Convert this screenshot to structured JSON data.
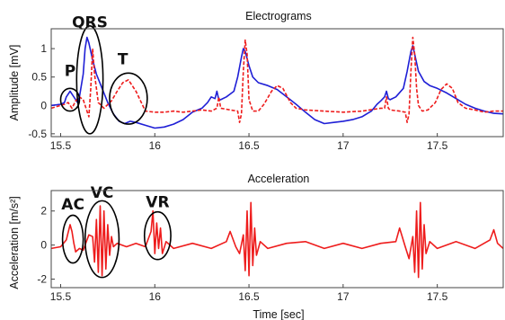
{
  "chart_data": [
    {
      "type": "line",
      "title": "Electrograms",
      "xlabel": "",
      "ylabel": "Amplitude [mV]",
      "xlim": [
        15.45,
        17.85
      ],
      "ylim": [
        -0.55,
        1.35
      ],
      "xticks": [
        15.5,
        16,
        16.5,
        17,
        17.5
      ],
      "xtick_labels": [
        "15.5",
        "16",
        "16.5",
        "17",
        "17.5"
      ],
      "yticks": [
        -0.5,
        0,
        0.5,
        1
      ],
      "ytick_labels": [
        "-0.5",
        "0",
        "0.5",
        "1"
      ],
      "grid": false,
      "legend": "none",
      "colors": [
        "#1f1fd6",
        "#ee1c1c"
      ],
      "series": [
        {
          "line_style": "solid",
          "x": [
            15.45,
            15.48,
            15.5,
            15.52,
            15.53,
            15.55,
            15.57,
            15.59,
            15.6,
            15.62,
            15.63,
            15.64,
            15.65,
            15.67,
            15.69,
            15.72,
            15.75,
            15.78,
            15.81,
            15.84,
            15.87,
            15.9,
            15.95,
            16.0,
            16.05,
            16.1,
            16.15,
            16.2,
            16.25,
            16.28,
            16.3,
            16.32,
            16.33,
            16.34,
            16.35,
            16.38,
            16.42,
            16.44,
            16.46,
            16.47,
            16.48,
            16.5,
            16.52,
            16.55,
            16.6,
            16.65,
            16.7,
            16.75,
            16.8,
            16.85,
            16.9,
            16.95,
            17.0,
            17.05,
            17.1,
            17.15,
            17.18,
            17.2,
            17.22,
            17.23,
            17.24,
            17.25,
            17.28,
            17.32,
            17.34,
            17.36,
            17.37,
            17.38,
            17.4,
            17.43,
            17.46,
            17.5,
            17.55,
            17.6,
            17.65,
            17.7,
            17.75,
            17.8,
            17.85
          ],
          "y": [
            0,
            0.01,
            0.02,
            0.05,
            0.15,
            0.25,
            0.15,
            0.05,
            0.15,
            0.55,
            1.0,
            1.2,
            1.1,
            0.8,
            0.55,
            0.3,
            0.05,
            -0.15,
            -0.28,
            -0.32,
            -0.28,
            -0.3,
            -0.35,
            -0.4,
            -0.38,
            -0.33,
            -0.25,
            -0.12,
            -0.05,
            0.05,
            0.15,
            0.12,
            0.25,
            0.1,
            0.1,
            0.15,
            0.25,
            0.5,
            0.85,
            1.0,
            0.95,
            0.7,
            0.5,
            0.4,
            0.35,
            0.28,
            0.15,
            0.02,
            -0.12,
            -0.25,
            -0.32,
            -0.3,
            -0.28,
            -0.25,
            -0.2,
            -0.1,
            0.02,
            0.08,
            0.15,
            0.25,
            0.12,
            0.1,
            0.15,
            0.3,
            0.6,
            0.95,
            1.05,
            0.9,
            0.6,
            0.42,
            0.35,
            0.3,
            0.22,
            0.12,
            0.02,
            -0.05,
            -0.1,
            -0.14,
            -0.15
          ]
        },
        {
          "line_style": "dashed",
          "x": [
            15.45,
            15.48,
            15.5,
            15.52,
            15.54,
            15.56,
            15.58,
            15.6,
            15.62,
            15.63,
            15.64,
            15.65,
            15.66,
            15.67,
            15.68,
            15.7,
            15.73,
            15.77,
            15.8,
            15.83,
            15.86,
            15.9,
            15.95,
            16.0,
            16.05,
            16.1,
            16.15,
            16.2,
            16.25,
            16.3,
            16.33,
            16.34,
            16.35,
            16.4,
            16.44,
            16.45,
            16.46,
            16.47,
            16.48,
            16.49,
            16.5,
            16.52,
            16.55,
            16.58,
            16.62,
            16.65,
            16.68,
            16.72,
            16.75,
            16.8,
            16.9,
            17.0,
            17.1,
            17.2,
            17.22,
            17.23,
            17.24,
            17.25,
            17.3,
            17.33,
            17.34,
            17.35,
            17.36,
            17.37,
            17.38,
            17.39,
            17.4,
            17.42,
            17.45,
            17.49,
            17.52,
            17.55,
            17.58,
            17.61,
            17.65,
            17.7,
            17.75,
            17.8,
            17.85
          ],
          "y": [
            -0.05,
            -0.02,
            0,
            0.02,
            0.05,
            -0.05,
            0.08,
            0.15,
            0.1,
            0.0,
            -0.1,
            -0.2,
            0.3,
            1.0,
            0.55,
            0.05,
            -0.05,
            0.08,
            0.25,
            0.4,
            0.45,
            0.25,
            -0.1,
            -0.12,
            -0.12,
            -0.1,
            -0.12,
            -0.1,
            -0.08,
            -0.1,
            -0.05,
            0.15,
            -0.05,
            -0.08,
            -0.1,
            -0.3,
            -0.15,
            0.6,
            1.15,
            0.9,
            0.1,
            -0.1,
            -0.1,
            0.02,
            0.25,
            0.35,
            0.3,
            0.05,
            -0.05,
            -0.08,
            -0.1,
            -0.12,
            -0.1,
            -0.05,
            -0.05,
            0.15,
            -0.05,
            -0.08,
            -0.1,
            -0.12,
            -0.3,
            -0.15,
            0.6,
            1.2,
            0.9,
            0.3,
            0.0,
            -0.1,
            -0.08,
            0.05,
            0.28,
            0.38,
            0.3,
            0.05,
            -0.05,
            -0.08,
            -0.12,
            -0.1,
            -0.1
          ]
        }
      ]
    },
    {
      "type": "line",
      "title": "Acceleration",
      "xlabel": "Time [sec]",
      "ylabel": "Acceleration [m/s²]",
      "xlim": [
        15.45,
        17.85
      ],
      "ylim": [
        -2.5,
        3.2
      ],
      "xticks": [
        15.5,
        16,
        16.5,
        17,
        17.5
      ],
      "xtick_labels": [
        "15.5",
        "16",
        "16.5",
        "17",
        "17.5"
      ],
      "yticks": [
        -2,
        0,
        2
      ],
      "ytick_labels": [
        "-2",
        "0",
        "2"
      ],
      "grid": false,
      "legend": "none",
      "colors": [
        "#ee1c1c"
      ],
      "series": [
        {
          "line_style": "solid",
          "x": [
            15.45,
            15.5,
            15.53,
            15.55,
            15.56,
            15.57,
            15.58,
            15.6,
            15.62,
            15.65,
            15.67,
            15.68,
            15.69,
            15.7,
            15.71,
            15.72,
            15.73,
            15.74,
            15.75,
            15.76,
            15.77,
            15.78,
            15.8,
            15.85,
            15.9,
            15.95,
            15.98,
            15.99,
            16.0,
            16.01,
            16.02,
            16.03,
            16.04,
            16.06,
            16.1,
            16.2,
            16.3,
            16.38,
            16.4,
            16.43,
            16.45,
            16.47,
            16.48,
            16.49,
            16.5,
            16.51,
            16.52,
            16.53,
            16.54,
            16.56,
            16.6,
            16.7,
            16.8,
            16.9,
            17.0,
            17.1,
            17.2,
            17.28,
            17.3,
            17.33,
            17.35,
            17.37,
            17.38,
            17.39,
            17.4,
            17.41,
            17.42,
            17.43,
            17.44,
            17.46,
            17.5,
            17.6,
            17.7,
            17.78,
            17.8,
            17.82,
            17.85
          ],
          "y": [
            -0.2,
            -0.1,
            0.3,
            1.2,
            0.8,
            0.1,
            -0.4,
            -0.2,
            -0.3,
            0.6,
            0.5,
            -1.0,
            1.5,
            -1.6,
            2.3,
            -1.8,
            2.0,
            -1.4,
            1.2,
            -0.6,
            0.5,
            -0.1,
            0.1,
            -0.1,
            0.1,
            -0.1,
            0.8,
            2.0,
            -0.5,
            1.3,
            -0.2,
            1.0,
            -0.5,
            0.2,
            -0.2,
            0.1,
            -0.2,
            0.2,
            0.8,
            -0.1,
            -0.5,
            0.6,
            -1.5,
            2.0,
            -1.8,
            2.5,
            -1.2,
            1.0,
            -0.6,
            0.2,
            -0.2,
            0.1,
            0.2,
            -0.2,
            0.1,
            -0.2,
            0.1,
            0.2,
            1.0,
            -0.1,
            -0.8,
            0.5,
            -1.6,
            2.0,
            -1.9,
            2.5,
            -1.4,
            1.2,
            -0.5,
            0.2,
            -0.2,
            0.2,
            -0.2,
            0.3,
            0.9,
            0.1,
            -0.2
          ]
        }
      ]
    }
  ],
  "annotations": {
    "top": [
      {
        "label": "P",
        "x": 15.55,
        "y": 0.1,
        "rx": 0.05,
        "ry": 0.2,
        "label_x": 15.55,
        "label_y": 0.6
      },
      {
        "label": "QRS",
        "x": 15.655,
        "y": 0.45,
        "rx": 0.07,
        "ry": 0.95,
        "label_x": 15.655,
        "label_y": 1.45
      },
      {
        "label": "T",
        "x": 15.86,
        "y": 0.12,
        "rx": 0.1,
        "ry": 0.45,
        "label_x": 15.83,
        "label_y": 0.8
      }
    ],
    "bottom": [
      {
        "label": "AC",
        "x": 15.565,
        "y": 0.35,
        "rx": 0.055,
        "ry": 1.4,
        "label_x": 15.565,
        "label_y": 2.35
      },
      {
        "label": "VC",
        "x": 15.72,
        "y": 0.35,
        "rx": 0.09,
        "ry": 2.25,
        "label_x": 15.72,
        "label_y": 3.05
      },
      {
        "label": "VR",
        "x": 16.015,
        "y": 0.55,
        "rx": 0.07,
        "ry": 1.4,
        "label_x": 16.015,
        "label_y": 2.5
      }
    ]
  }
}
